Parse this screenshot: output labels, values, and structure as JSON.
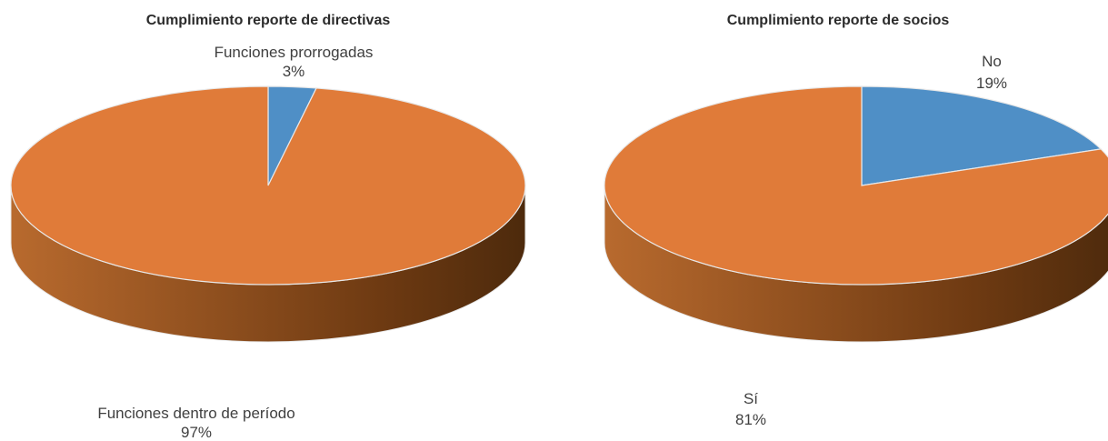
{
  "colors": {
    "slice_orange": "#e07b39",
    "slice_blue": "#4f8fc6",
    "side_light": "#b86a2e",
    "side_dark": "#4d2a0c",
    "edge": "#e8e8e8"
  },
  "chart_data": [
    {
      "type": "pie",
      "style": "3d",
      "title": "Cumplimiento reporte de directivas",
      "slices": [
        {
          "label": "Funciones prorrogadas",
          "value": 3,
          "value_label": "3%",
          "color": "#4f8fc6"
        },
        {
          "label": "Funciones dentro de período",
          "value": 97,
          "value_label": "97%",
          "color": "#e07b39"
        }
      ]
    },
    {
      "type": "pie",
      "style": "3d",
      "title": "Cumplimiento reporte de socios",
      "slices": [
        {
          "label": "No",
          "value": 19,
          "value_label": "19%",
          "color": "#4f8fc6"
        },
        {
          "label": "Sí",
          "value": 81,
          "value_label": "81%",
          "color": "#e07b39"
        }
      ]
    }
  ]
}
